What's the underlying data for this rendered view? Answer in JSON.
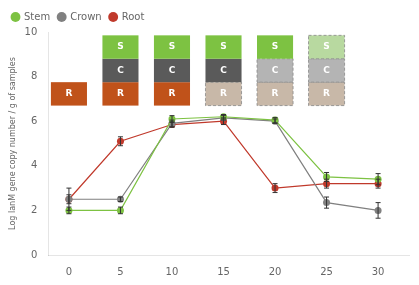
{
  "chart_data": {
    "type": "line",
    "x": [
      0,
      5,
      10,
      15,
      20,
      25,
      30
    ],
    "series": [
      {
        "name": "Stem",
        "color": "#7dc242",
        "marker": "circle",
        "values": [
          2.0,
          2.0,
          6.1,
          6.2,
          6.05,
          3.5,
          3.4
        ],
        "errors": [
          0.15,
          0.15,
          0.15,
          0.1,
          0.12,
          0.2,
          0.25
        ]
      },
      {
        "name": "Crown",
        "color": "#808080",
        "marker": "circle",
        "values": [
          2.5,
          2.5,
          5.9,
          6.15,
          6.0,
          2.35,
          2.0
        ],
        "errors": [
          0.2,
          0.1,
          0.15,
          0.1,
          0.1,
          0.25,
          0.35
        ]
      },
      {
        "name": "Root",
        "color": "#c0392b",
        "marker": "circle",
        "values": [
          2.5,
          5.1,
          5.85,
          6.0,
          3.0,
          3.2,
          3.2
        ],
        "errors": [
          0.5,
          0.2,
          0.12,
          0.15,
          0.2,
          0.2,
          0.2
        ]
      }
    ],
    "ylabel": "Log lanM gene copy number / g of samples",
    "xlim": [
      -2,
      33
    ],
    "ylim": [
      0,
      10
    ],
    "xticks": [
      0,
      5,
      10,
      15,
      20,
      25,
      30
    ],
    "yticks": [
      0,
      2,
      4,
      6,
      8,
      10
    ],
    "grid": false,
    "legend": "upper left",
    "annotations": [
      {
        "x": 0,
        "boxes": [
          {
            "text": "R",
            "color": "#c0521a"
          }
        ]
      },
      {
        "x": 5,
        "boxes": [
          {
            "text": "R",
            "color": "#c0521a"
          },
          {
            "text": "C",
            "color": "#5a5a5a"
          },
          {
            "text": "S",
            "color": "#7dc242"
          }
        ]
      },
      {
        "x": 10,
        "boxes": [
          {
            "text": "R",
            "color": "#c0521a"
          },
          {
            "text": "C",
            "color": "#5a5a5a"
          },
          {
            "text": "S",
            "color": "#7dc242"
          }
        ]
      },
      {
        "x": 15,
        "boxes": [
          {
            "text": "R",
            "color": "#c8b8a8",
            "line_style": "dashed"
          },
          {
            "text": "C",
            "color": "#5a5a5a"
          },
          {
            "text": "S",
            "color": "#7dc242"
          }
        ]
      },
      {
        "x": 20,
        "boxes": [
          {
            "text": "R",
            "color": "#c8b8a8",
            "line_style": "dashed"
          },
          {
            "text": "C",
            "color": "#b4b4b4",
            "line_style": "dashed"
          },
          {
            "text": "S",
            "color": "#7dc242"
          }
        ]
      },
      {
        "x": 25,
        "boxes": [
          {
            "text": "R",
            "color": "#c8b8a8",
            "line_style": "dashed"
          },
          {
            "text": "C",
            "color": "#b4b4b4",
            "line_style": "dashed"
          },
          {
            "text": "S",
            "color": "#b8d9a0",
            "line_style": "dashed"
          }
        ]
      }
    ]
  }
}
